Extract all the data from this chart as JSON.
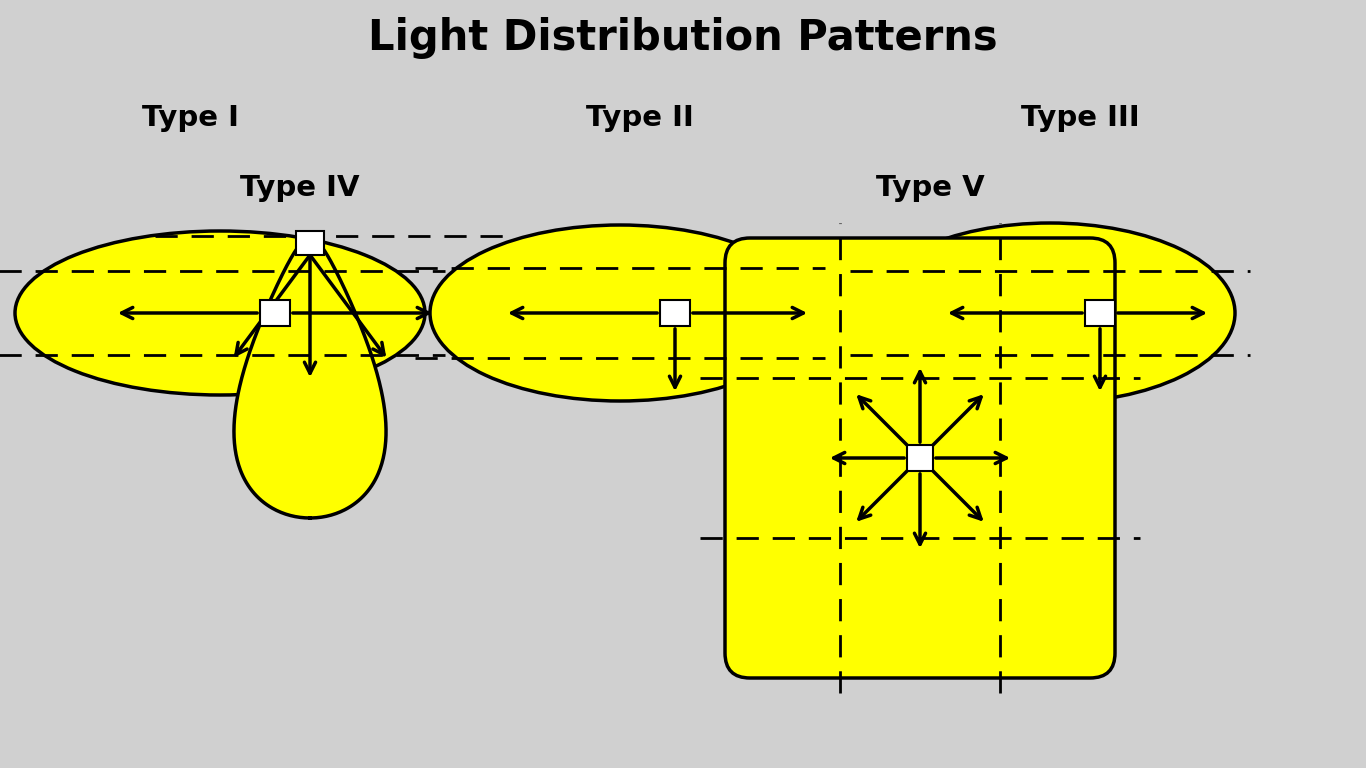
{
  "title": "Light Distribution Patterns",
  "title_fontsize": 30,
  "title_fontweight": "bold",
  "bg_color": "#d0d0d0",
  "yellow": "#FFFF00",
  "black": "#000000",
  "white": "#FFFFFF",
  "types": [
    "Type I",
    "Type II",
    "Type III",
    "Type IV",
    "Type V"
  ],
  "type_fontsize": 21,
  "type_fontweight": "bold",
  "fig_w": 13.66,
  "fig_h": 7.68,
  "dpi": 100
}
